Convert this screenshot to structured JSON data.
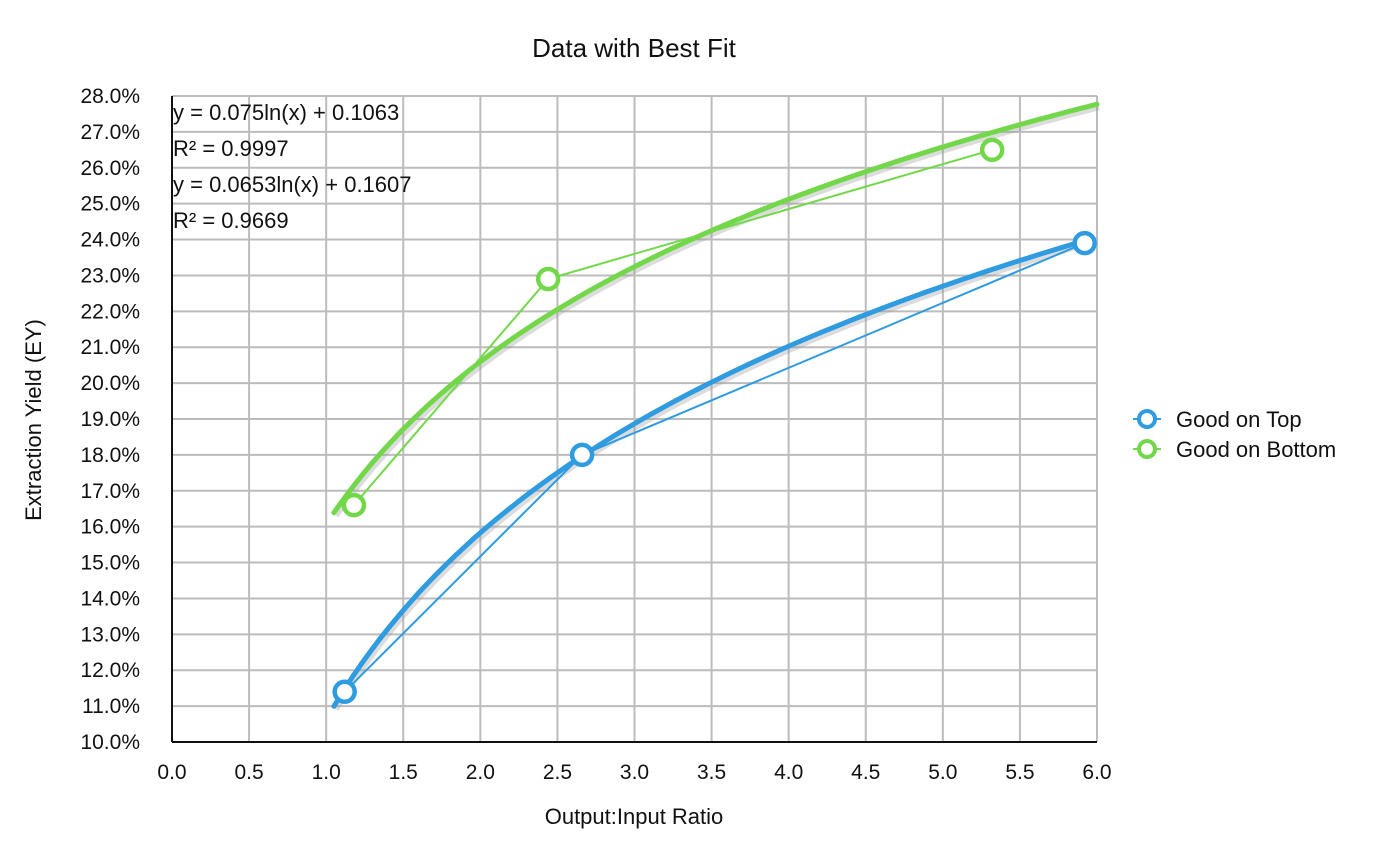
{
  "chart_data": {
    "type": "scatter",
    "title": "Data with Best Fit",
    "xlabel": "Output:Input Ratio",
    "ylabel": "Extraction Yield (EY)",
    "xlim": [
      0.0,
      6.0
    ],
    "ylim": [
      0.1,
      0.28
    ],
    "x_ticks": [
      "0.0",
      "0.5",
      "1.0",
      "1.5",
      "2.0",
      "2.5",
      "3.0",
      "3.5",
      "4.0",
      "4.5",
      "5.0",
      "5.5",
      "6.0"
    ],
    "y_ticks": [
      "10.0%",
      "11.0%",
      "12.0%",
      "13.0%",
      "14.0%",
      "15.0%",
      "16.0%",
      "17.0%",
      "18.0%",
      "19.0%",
      "20.0%",
      "21.0%",
      "22.0%",
      "23.0%",
      "24.0%",
      "25.0%",
      "26.0%",
      "27.0%",
      "28.0%"
    ],
    "grid": true,
    "legend_position": "right",
    "annotations": [
      "y = 0.075ln(x) + 0.1063",
      "R² = 0.9997",
      "y = 0.0653ln(x) + 0.1607",
      "R² = 0.9669"
    ],
    "series": [
      {
        "name": "Good on Top",
        "color": "#2f9be0",
        "x": [
          1.12,
          2.66,
          5.92
        ],
        "y": [
          0.114,
          0.18,
          0.239
        ],
        "fit": {
          "type": "log",
          "a": 0.075,
          "b": 0.1063,
          "x_range": [
            1.05,
            5.92
          ]
        }
      },
      {
        "name": "Good on Bottom",
        "color": "#72d84a",
        "x": [
          1.18,
          2.44,
          5.32
        ],
        "y": [
          0.166,
          0.229,
          0.265
        ],
        "fit": {
          "type": "log",
          "a": 0.0653,
          "b": 0.1607,
          "x_range": [
            1.05,
            6.0
          ]
        }
      }
    ]
  }
}
